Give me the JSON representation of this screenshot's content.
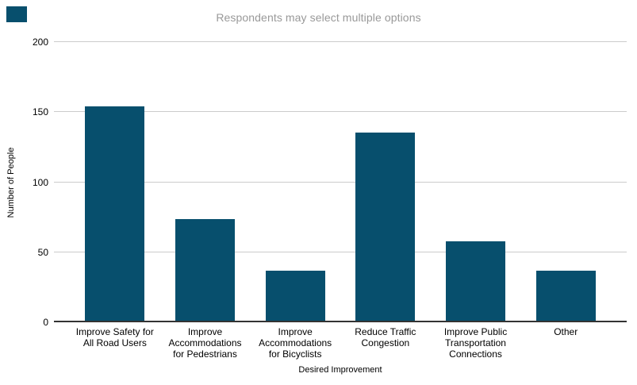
{
  "page": {
    "background": "#ffffff"
  },
  "chart_data": {
    "type": "bar",
    "title": "Respondents may select multiple options",
    "title_color": "#999999",
    "categories": [
      "Improve Safety for All Road Users",
      "Improve Accommodations for Pedestrians",
      "Improve Accommodations for Bicyclists",
      "Reduce Traffic Congestion",
      "Improve Public Transportation Connections",
      "Other"
    ],
    "values": [
      154,
      73,
      36,
      135,
      57,
      36
    ],
    "xlabel": "Desired Improvement",
    "ylabel": "Number of People",
    "ylim": [
      0,
      200
    ],
    "yticks": [
      0,
      50,
      100,
      150,
      200
    ],
    "grid": true,
    "legend": "none",
    "bar_color": "#074f6d",
    "gridline_color": "#cccccc",
    "axis_line_color": "#333333",
    "tick_label_color": "#000000"
  }
}
